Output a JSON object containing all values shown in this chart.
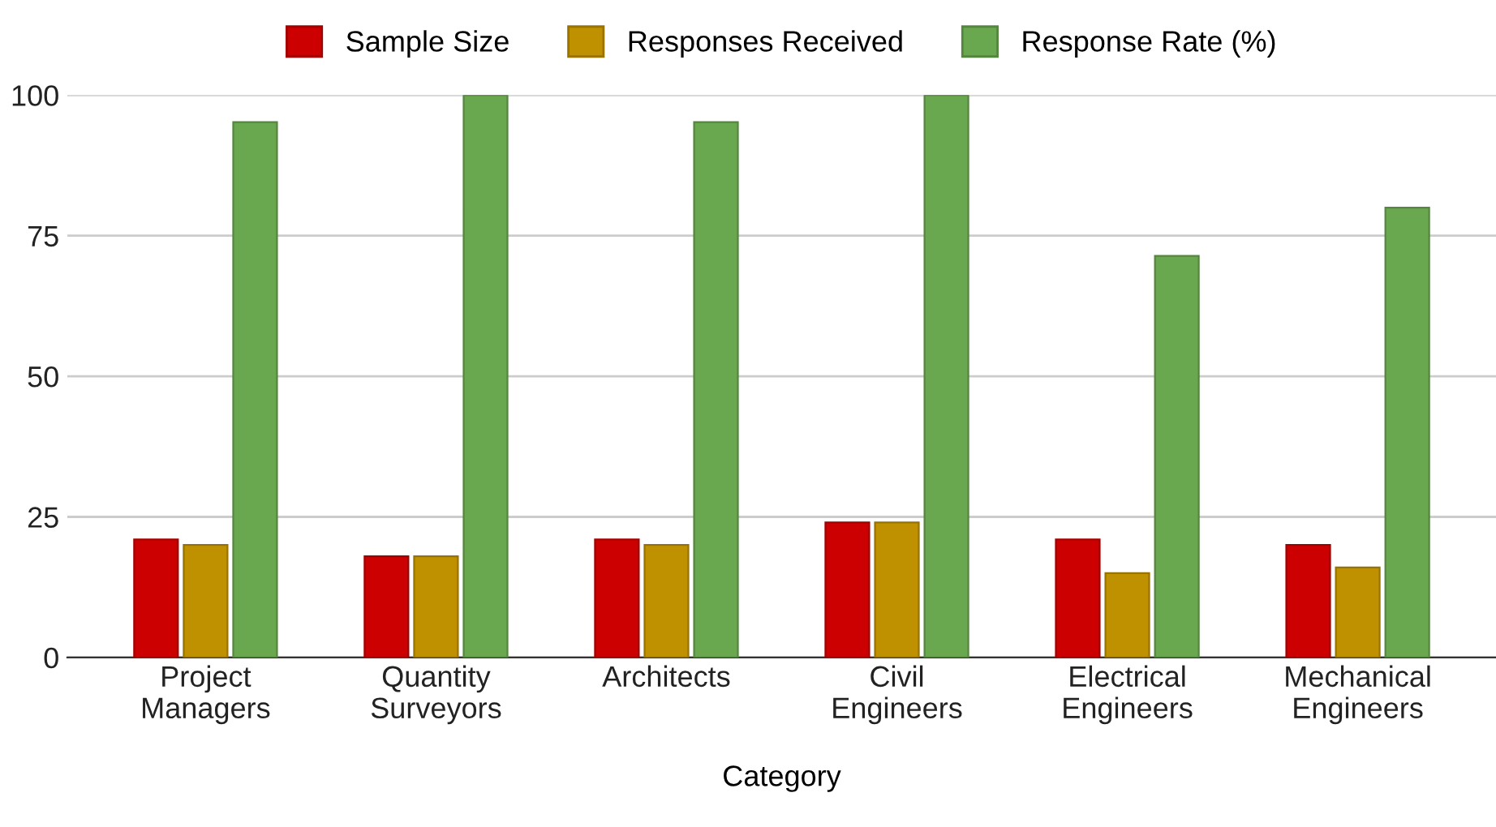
{
  "chart_data": {
    "type": "bar",
    "xlabel": "Category",
    "categories": [
      "Project\nManagers",
      "Quantity\nSurveyors",
      "Architects",
      "Civil\nEngineers",
      "Electrical\nEngineers",
      "Mechanical\nEngineers"
    ],
    "series": [
      {
        "name": "Sample Size",
        "color": "#cc0000",
        "values": [
          21,
          18,
          21,
          24,
          21,
          20
        ]
      },
      {
        "name": "Responses Received",
        "color": "#bf9000",
        "values": [
          20,
          18,
          20,
          24,
          15,
          16
        ]
      },
      {
        "name": "Response Rate (%)",
        "color": "#6aa84f",
        "values": [
          95.2,
          100,
          95.2,
          100,
          71.4,
          80
        ]
      }
    ],
    "ylim": [
      0,
      100
    ],
    "yticks": [
      0,
      25,
      50,
      75,
      100
    ],
    "grid": "y",
    "legend": "top"
  }
}
